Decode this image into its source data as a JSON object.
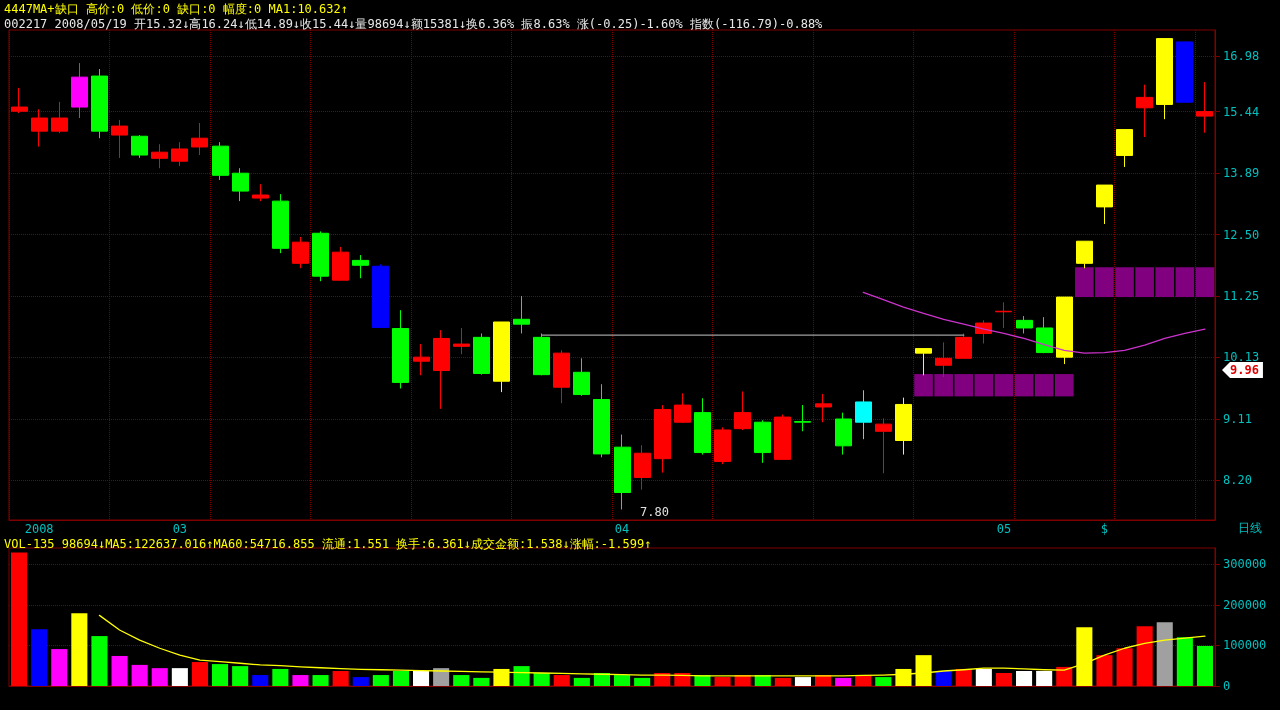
{
  "chart_data": [
    {
      "type": "candlestick",
      "log": true,
      "grid": true,
      "marker": "none",
      "annotations": [
        "4447MA+缺口 高价:0 低价:0 缺口:0 幅度:0 MA1:10.632↑",
        "002217 2008/05/19 开15.32↓高16.24↓低14.89↓收15.44↓量98694↓额15381↓换6.36% 振8.63% 涨(-0.25)-1.60% 指数(-116.79)-0.88%",
        "日线",
        "7.80",
        "9.96"
      ],
      "categories": [
        null,
        "2008",
        null,
        null,
        null,
        null,
        null,
        null,
        "03",
        null,
        null,
        null,
        null,
        null,
        null,
        null,
        null,
        null,
        null,
        null,
        null,
        null,
        null,
        null,
        null,
        null,
        null,
        null,
        null,
        null,
        "04",
        null,
        null,
        null,
        null,
        null,
        null,
        null,
        null,
        null,
        null,
        null,
        null,
        null,
        null,
        null,
        null,
        null,
        null,
        "05",
        null,
        null,
        null,
        null,
        "$",
        null,
        null,
        null,
        null,
        null
      ],
      "ylim": [
        7.66,
        17.76
      ],
      "yticks": [
        {
          "value": 8.2,
          "label": "8.20"
        },
        9.11,
        10.13,
        11.25,
        {
          "value": 12.5,
          "label": "12.50"
        },
        13.89,
        15.44,
        16.98
      ],
      "series": [
        {
          "type": "bar",
          "color": "#800080",
          "base": [
            null,
            null,
            null,
            null,
            null,
            null,
            null,
            null,
            null,
            null,
            null,
            null,
            null,
            null,
            null,
            null,
            null,
            null,
            null,
            null,
            null,
            null,
            null,
            null,
            null,
            null,
            null,
            null,
            null,
            null,
            null,
            null,
            null,
            null,
            null,
            null,
            null,
            null,
            null,
            null,
            null,
            null,
            null,
            null,
            null,
            9.47,
            9.47,
            9.47,
            9.47,
            9.47,
            9.47,
            9.47,
            9.47,
            11.23,
            11.23,
            11.23,
            11.23,
            11.23,
            11.23,
            11.23
          ],
          "values": [
            null,
            null,
            null,
            null,
            null,
            null,
            null,
            null,
            null,
            null,
            null,
            null,
            null,
            null,
            null,
            null,
            null,
            null,
            null,
            null,
            null,
            null,
            null,
            null,
            null,
            null,
            null,
            null,
            null,
            null,
            null,
            null,
            null,
            null,
            null,
            null,
            null,
            null,
            null,
            null,
            null,
            null,
            null,
            null,
            null,
            0.37,
            0.37,
            0.37,
            0.37,
            0.37,
            0.37,
            0.37,
            0.37,
            0.59,
            0.59,
            0.59,
            0.59,
            0.59,
            0.59,
            0.59
          ]
        },
        {
          "type": "line",
          "color": "#a0a0a0",
          "values": [
            null,
            null,
            null,
            null,
            null,
            null,
            null,
            null,
            null,
            null,
            null,
            null,
            null,
            null,
            null,
            null,
            null,
            null,
            null,
            null,
            null,
            null,
            null,
            null,
            null,
            null,
            10.52,
            10.52,
            10.52,
            10.52,
            10.52,
            10.52,
            10.52,
            10.52,
            10.52,
            10.52,
            10.52,
            10.52,
            10.52,
            10.52,
            10.52,
            10.52,
            10.52,
            10.52,
            10.52,
            10.52,
            10.52,
            10.52,
            null,
            null,
            null,
            null,
            null,
            null,
            null,
            null,
            null,
            null,
            null,
            null
          ]
        },
        {
          "type": "line",
          "color": "#cc33cc",
          "values": [
            null,
            null,
            null,
            null,
            null,
            null,
            null,
            null,
            null,
            null,
            null,
            null,
            null,
            null,
            null,
            null,
            null,
            null,
            null,
            null,
            null,
            null,
            null,
            null,
            null,
            null,
            null,
            null,
            null,
            null,
            null,
            null,
            null,
            null,
            null,
            null,
            null,
            null,
            null,
            null,
            null,
            null,
            11.32,
            11.18,
            11.04,
            10.92,
            10.81,
            10.72,
            10.63,
            10.55,
            10.46,
            10.35,
            10.25,
            10.2,
            10.21,
            10.25,
            10.34,
            10.46,
            10.55,
            10.63
          ]
        },
        {
          "colors": [
            "#ff0000",
            "#ff0000",
            "#ff0000",
            "#ff00ff",
            "#00ff00",
            "#ff0000",
            "#00ff00",
            "#ff0000",
            "#ff0000",
            "#ff0000",
            "#00ff00",
            "#00ff00",
            "#ff0000",
            "#00ff00",
            "#ff0000",
            "#00ff00",
            "#ff0000",
            "#00ff00",
            "#0000ff",
            "#00ff00",
            "#ff0000",
            "#ff0000",
            "#ff0000",
            "#00ff00",
            "#ffff00",
            "#00ff00",
            "#00ff00",
            "#ff0000",
            "#00ff00",
            "#00ff00",
            "#00ff00",
            "#ff0000",
            "#ff0000",
            "#ff0000",
            "#00ff00",
            "#ff0000",
            "#ff0000",
            "#00ff00",
            "#ff0000",
            "#00ff00",
            "#ff0000",
            "#00ff00",
            "#00ffff",
            "#ff0000",
            "#ffff00",
            "#ffff00",
            "#ff0000",
            "#ff0000",
            "#ff0000",
            "#ff0000",
            "#00ff00",
            "#00ff00",
            "#ffff00",
            "#ffff00",
            "#ffff00",
            "#ffff00",
            "#ff0000",
            "#ffff00",
            "#0000ff",
            "#ff0000"
          ],
          "ohlc": [
            [
              15.45,
              16.08,
              15.4,
              15.56
            ],
            [
              14.93,
              15.5,
              14.54,
              15.27
            ],
            [
              14.93,
              15.7,
              14.88,
              15.27
            ],
            [
              15.56,
              16.78,
              15.27,
              16.38
            ],
            [
              16.41,
              16.61,
              14.75,
              14.93
            ],
            [
              14.83,
              15.22,
              14.26,
              15.06
            ],
            [
              14.8,
              14.83,
              14.26,
              14.33
            ],
            [
              14.25,
              14.6,
              14.01,
              14.4
            ],
            [
              14.18,
              14.65,
              14.06,
              14.48
            ],
            [
              14.53,
              15.14,
              14.33,
              14.75
            ],
            [
              14.55,
              14.65,
              13.73,
              13.84
            ],
            [
              13.89,
              14.01,
              13.24,
              13.47
            ],
            [
              13.31,
              13.63,
              13.24,
              13.38
            ],
            [
              13.24,
              13.4,
              12.11,
              12.21
            ],
            [
              11.9,
              12.45,
              11.8,
              12.34
            ],
            [
              12.53,
              12.57,
              11.54,
              11.64
            ],
            [
              11.56,
              12.24,
              11.56,
              12.13
            ],
            [
              11.96,
              12.07,
              11.6,
              11.86
            ],
            [
              11.84,
              11.88,
              10.66,
              10.66
            ],
            [
              10.64,
              10.98,
              9.6,
              9.7
            ],
            [
              10.06,
              10.36,
              9.82,
              10.13
            ],
            [
              9.9,
              10.61,
              9.27,
              10.46
            ],
            [
              10.32,
              10.65,
              10.18,
              10.36
            ],
            [
              10.48,
              10.55,
              9.83,
              9.85
            ],
            [
              9.72,
              10.76,
              9.54,
              10.76
            ],
            [
              10.81,
              11.25,
              10.55,
              10.72
            ],
            [
              10.48,
              10.55,
              9.82,
              9.83
            ],
            [
              9.62,
              10.25,
              9.36,
              10.2
            ],
            [
              9.87,
              10.11,
              9.48,
              9.5
            ],
            [
              9.42,
              9.67,
              8.53,
              8.58
            ],
            [
              8.68,
              8.87,
              7.8,
              8.03
            ],
            [
              8.24,
              8.71,
              8.07,
              8.59
            ],
            [
              8.51,
              9.33,
              8.31,
              9.26
            ],
            [
              9.06,
              9.52,
              9.05,
              9.33
            ],
            [
              9.21,
              9.44,
              8.57,
              8.6
            ],
            [
              8.47,
              8.98,
              8.43,
              8.94
            ],
            [
              8.96,
              9.55,
              8.94,
              9.21
            ],
            [
              9.06,
              9.09,
              8.45,
              8.6
            ],
            [
              8.5,
              9.18,
              8.5,
              9.14
            ],
            [
              9.07,
              9.33,
              8.92,
              9.06
            ],
            [
              9.3,
              9.51,
              9.06,
              9.35
            ],
            [
              9.11,
              9.21,
              8.57,
              8.7
            ],
            [
              9.06,
              9.57,
              8.8,
              9.38
            ],
            [
              8.92,
              9.12,
              8.3,
              9.03
            ],
            [
              8.78,
              9.45,
              8.57,
              9.34
            ],
            [
              10.2,
              10.28,
              9.82,
              10.28
            ],
            [
              9.99,
              10.39,
              9.79,
              10.11
            ],
            [
              10.11,
              10.55,
              10.11,
              10.48
            ],
            [
              10.55,
              10.79,
              10.37,
              10.74
            ],
            [
              10.95,
              11.13,
              10.65,
              10.96
            ],
            [
              10.79,
              10.87,
              10.55,
              10.65
            ],
            [
              10.65,
              10.85,
              10.2,
              10.21
            ],
            [
              10.13,
              11.23,
              10.01,
              11.23
            ],
            [
              11.9,
              12.36,
              11.8,
              12.36
            ],
            [
              13.11,
              13.61,
              12.73,
              13.61
            ],
            [
              14.32,
              14.97,
              14.04,
              14.97
            ],
            [
              15.54,
              16.17,
              14.78,
              15.82
            ],
            [
              15.63,
              17.5,
              15.24,
              17.5
            ],
            [
              17.4,
              17.4,
              15.69,
              15.69
            ],
            [
              15.32,
              16.24,
              14.89,
              15.44
            ]
          ]
        }
      ]
    },
    {
      "type": "bar",
      "grid": "y",
      "marker": "none",
      "tick_labels": "y",
      "annotations": [
        "VOL-135 98694↓MA5:122637.016↑MA60:54716.855 流通:1.551 换手:6.361↓成交金额:1.538↓涨幅:-1.599↑"
      ],
      "categories": [
        null,
        null,
        null,
        null,
        null,
        null,
        null,
        null,
        null,
        null,
        null,
        null,
        null,
        null,
        null,
        null,
        null,
        null,
        null,
        null,
        null,
        null,
        null,
        null,
        null,
        null,
        null,
        null,
        null,
        null,
        null,
        null,
        null,
        null,
        null,
        null,
        null,
        null,
        null,
        null,
        null,
        null,
        null,
        null,
        null,
        null,
        null,
        null,
        null,
        null,
        null,
        null,
        null,
        null,
        null,
        null,
        null,
        null,
        null,
        null
      ],
      "ylim": [
        0,
        340000
      ],
      "yticks": [
        0,
        100000,
        200000,
        300000
      ],
      "series": [
        {
          "colors": [
            "#ff0000",
            "#0000ff",
            "#ff00ff",
            "#ffff00",
            "#00ff00",
            "#ff00ff",
            "#ff00ff",
            "#ff00ff",
            "#ffffff",
            "#ff0000",
            "#00ff00",
            "#00ff00",
            "#0000ff",
            "#00ff00",
            "#ff00ff",
            "#00ff00",
            "#ff0000",
            "#0000ff",
            "#00ff00",
            "#00ff00",
            "#ffffff",
            "#a0a0a0",
            "#00ff00",
            "#00ff00",
            "#ffff00",
            "#00ff00",
            "#00ff00",
            "#ff0000",
            "#00ff00",
            "#00ff00",
            "#00ff00",
            "#00ff00",
            "#ff0000",
            "#ff0000",
            "#00ff00",
            "#ff0000",
            "#ff0000",
            "#00ff00",
            "#ff0000",
            "#ffffff",
            "#ff0000",
            "#ff00ff",
            "#ff0000",
            "#00ff00",
            "#ffff00",
            "#ffff00",
            "#0000ff",
            "#ff0000",
            "#ffffff",
            "#ff0000",
            "#ffffff",
            "#ffffff",
            "#ff0000",
            "#ffff00",
            "#ff0000",
            "#ff0000",
            "#ff0000",
            "#a0a0a0",
            "#00ff00",
            "#00ff00"
          ],
          "values": [
            329000,
            140000,
            91000,
            179000,
            123000,
            74000,
            52000,
            44000,
            44000,
            59000,
            54000,
            49000,
            27000,
            42000,
            27000,
            27000,
            37000,
            22000,
            27000,
            37000,
            37000,
            44000,
            27000,
            20000,
            42000,
            49000,
            32000,
            27000,
            20000,
            32000,
            27000,
            20000,
            32000,
            32000,
            27000,
            22000,
            27000,
            27000,
            20000,
            22000,
            27000,
            20000,
            27000,
            22000,
            42000,
            76000,
            37000,
            42000,
            42000,
            32000,
            37000,
            37000,
            47000,
            145000,
            76000,
            93000,
            147000,
            157000,
            120000,
            98694
          ]
        },
        {
          "type": "line",
          "color": "#ffff00",
          "values": [
            null,
            null,
            null,
            null,
            174000,
            138000,
            113000,
            93000,
            76000,
            64000,
            60000,
            56000,
            52000,
            50000,
            47000,
            45000,
            43000,
            41000,
            40000,
            39000,
            38000,
            37000,
            36000,
            35000,
            34000,
            33000,
            32000,
            31000,
            30000,
            29000,
            28000,
            27000,
            27000,
            26000,
            25000,
            25000,
            25000,
            25000,
            25000,
            25000,
            25000,
            25000,
            26000,
            27000,
            29000,
            32000,
            37000,
            40000,
            44000,
            44000,
            42000,
            40000,
            39000,
            55000,
            76000,
            93000,
            105000,
            113000,
            118000,
            122637
          ]
        }
      ]
    }
  ]
}
